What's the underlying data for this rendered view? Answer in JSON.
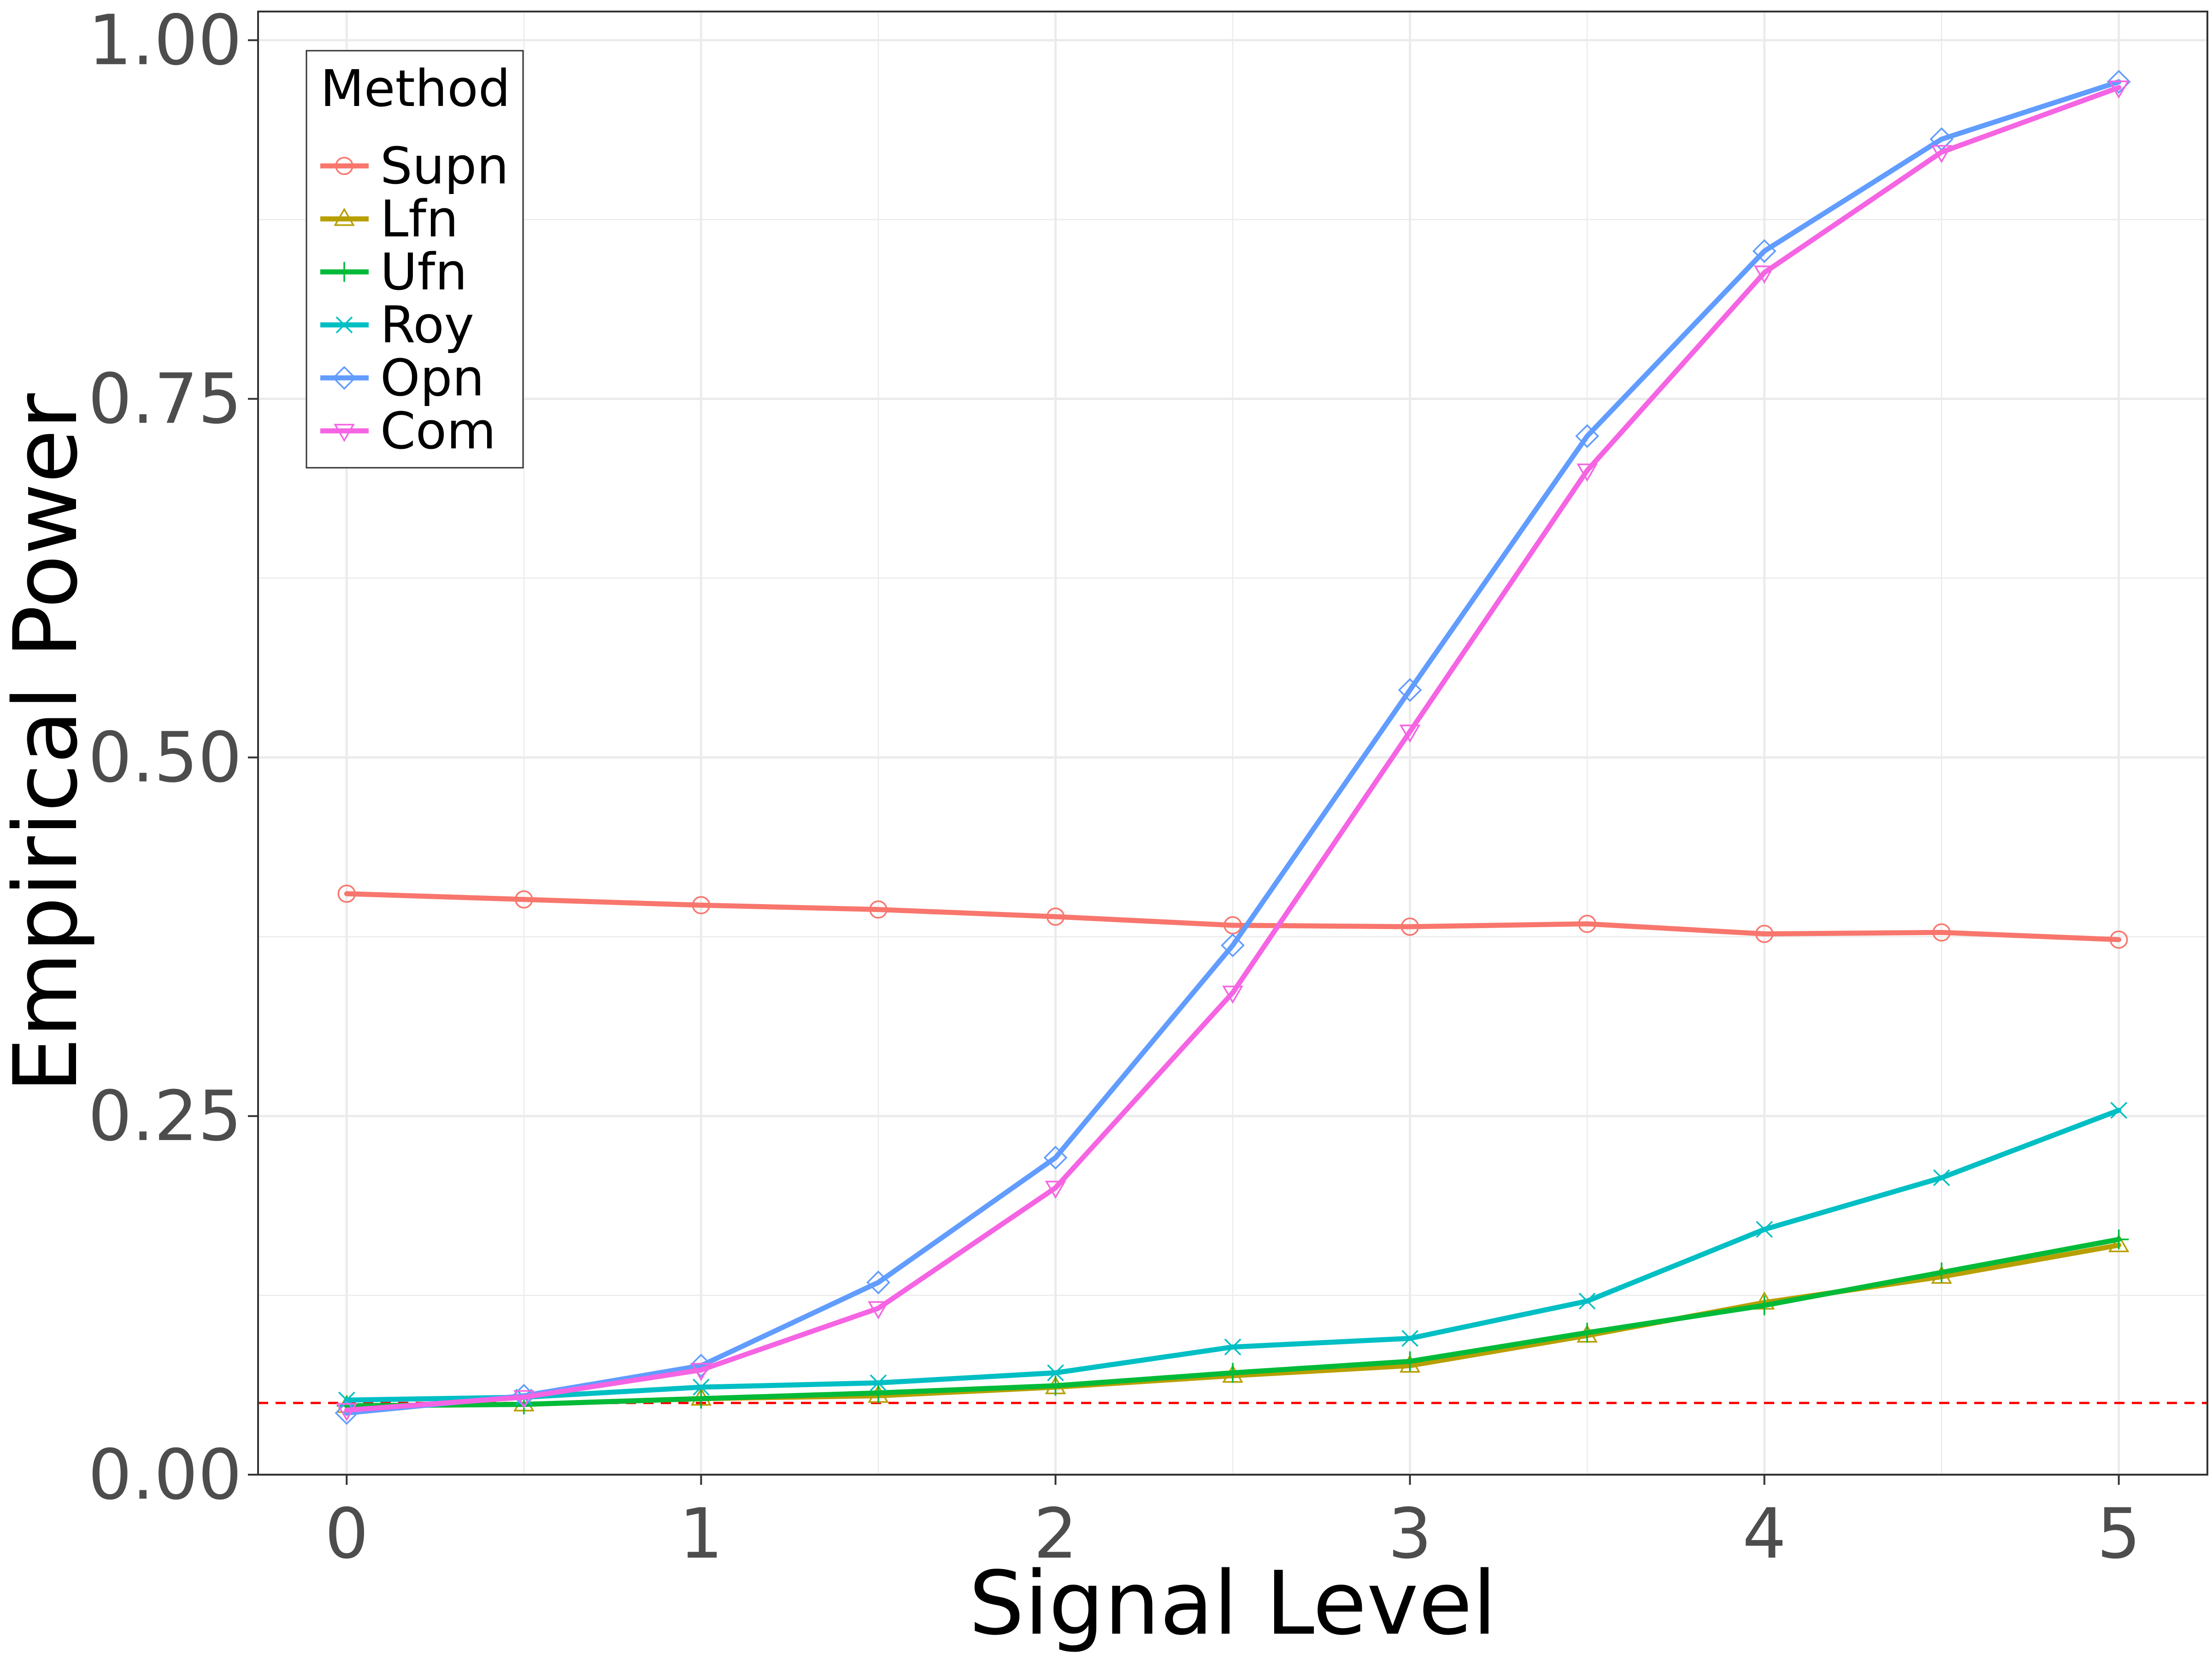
{
  "chart_data": {
    "type": "line",
    "title": "",
    "xlabel": "Signal Level",
    "ylabel": "Empirical Power",
    "xlim": [
      -0.25,
      5.25
    ],
    "ylim": [
      0.0,
      1.02
    ],
    "grid": true,
    "x": [
      0,
      0.5,
      1,
      1.5,
      2,
      2.5,
      3,
      3.5,
      4,
      4.5,
      5
    ],
    "x_ticks": [
      0,
      1,
      2,
      3,
      4,
      5
    ],
    "x_tick_labels": [
      "0",
      "1",
      "2",
      "3",
      "4",
      "5"
    ],
    "y_ticks": [
      0.0,
      0.25,
      0.5,
      0.75,
      1.0
    ],
    "y_tick_labels": [
      "0.00",
      "0.25",
      "0.50",
      "0.75",
      "1.00"
    ],
    "reference_line": {
      "y": 0.05,
      "color": "#ff0000",
      "style": "dashed"
    },
    "legend": {
      "title": "Method",
      "position": "top-left"
    },
    "series": [
      {
        "name": "Supn",
        "color": "#F8766D",
        "marker": "circle",
        "values": [
          0.405,
          0.401,
          0.397,
          0.394,
          0.389,
          0.383,
          0.382,
          0.384,
          0.377,
          0.378,
          0.373
        ]
      },
      {
        "name": "Lfn",
        "color": "#B79F00",
        "marker": "triangle-up",
        "values": [
          0.048,
          0.049,
          0.053,
          0.055,
          0.061,
          0.069,
          0.076,
          0.097,
          0.12,
          0.138,
          0.16
        ]
      },
      {
        "name": "Ufn",
        "color": "#00BA38",
        "marker": "plus",
        "values": [
          0.048,
          0.049,
          0.053,
          0.057,
          0.062,
          0.071,
          0.079,
          0.099,
          0.118,
          0.141,
          0.164
        ]
      },
      {
        "name": "Roy",
        "color": "#00BFC4",
        "marker": "x",
        "values": [
          0.052,
          0.054,
          0.061,
          0.064,
          0.071,
          0.089,
          0.095,
          0.121,
          0.171,
          0.207,
          0.254
        ]
      },
      {
        "name": "Opn",
        "color": "#619CFF",
        "marker": "diamond",
        "values": [
          0.043,
          0.055,
          0.076,
          0.134,
          0.221,
          0.369,
          0.547,
          0.724,
          0.853,
          0.931,
          0.971
        ]
      },
      {
        "name": "Com",
        "color": "#F564E3",
        "marker": "triangle-down",
        "values": [
          0.045,
          0.054,
          0.073,
          0.116,
          0.2,
          0.336,
          0.518,
          0.7,
          0.838,
          0.922,
          0.967
        ]
      }
    ]
  },
  "colors": {
    "panel_border": "#333333",
    "grid": "#ebebeb",
    "tick_text": "#4d4d4d"
  }
}
